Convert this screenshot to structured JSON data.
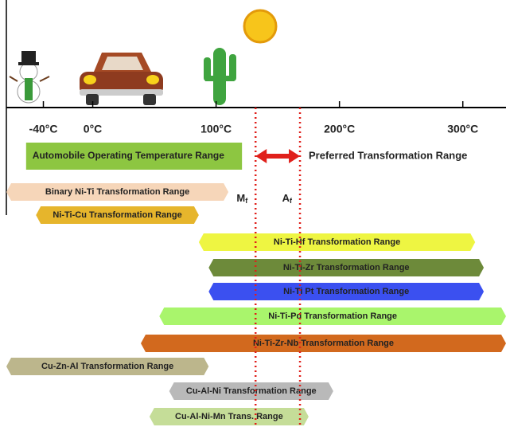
{
  "chart_data": {
    "type": "range",
    "xlim": [
      -70,
      335
    ],
    "xticks": [
      {
        "value": -40,
        "label": "-40°C"
      },
      {
        "value": 0,
        "label": "0°C"
      },
      {
        "value": 100,
        "label": "100°C"
      },
      {
        "value": 200,
        "label": "200°C"
      },
      {
        "value": 300,
        "label": "300°C"
      }
    ],
    "ranges": [
      {
        "name": "Automobile Operating Temperature Range",
        "color": "#8dc641",
        "values": [
          -54,
          121
        ]
      },
      {
        "name": "Binary Ni-Ti Transformation Range",
        "color": "#f6d6b9",
        "values": [
          -70,
          110
        ]
      },
      {
        "name": "Ni-Ti-Cu Transformation Range",
        "color": "#e6b52c",
        "values": [
          -46,
          86
        ]
      },
      {
        "name": "Ni-Ti-Hf Transformation Range",
        "color": "#eef542",
        "values": [
          86,
          310
        ]
      },
      {
        "name": "Ni-Ti-Zr Transformation Range",
        "color": "#6d8a3a",
        "values": [
          94,
          317
        ]
      },
      {
        "name": "Ni-Ti Pt Transformation Range",
        "color": "#3b50f0",
        "values": [
          94,
          317
        ]
      },
      {
        "name": "Ni-Ti-Pd Transformation Range",
        "color": "#a9f56c",
        "values": [
          54,
          335
        ]
      },
      {
        "name": "Ni-Ti-Zr-Nb Transformation Range",
        "color": "#d2691e",
        "values": [
          39,
          335
        ]
      },
      {
        "name": "Cu-Zn-Al Transformation Range",
        "color": "#bcb68c",
        "values": [
          -70,
          94
        ]
      },
      {
        "name": "Cu-Al-Ni Transformation Range",
        "color": "#b9b9b9",
        "values": [
          62,
          195
        ]
      },
      {
        "name": "Cu-Al-Ni-Mn Trans. Range",
        "color": "#c5dd98",
        "values": [
          46,
          175
        ]
      }
    ],
    "markers": [
      {
        "label": "M",
        "subscript": "f",
        "value": 132
      },
      {
        "label": "A",
        "subscript": "f",
        "value": 168
      }
    ],
    "marker_color": "#e0201b",
    "preferred_label": "Preferred Transformation Range"
  }
}
